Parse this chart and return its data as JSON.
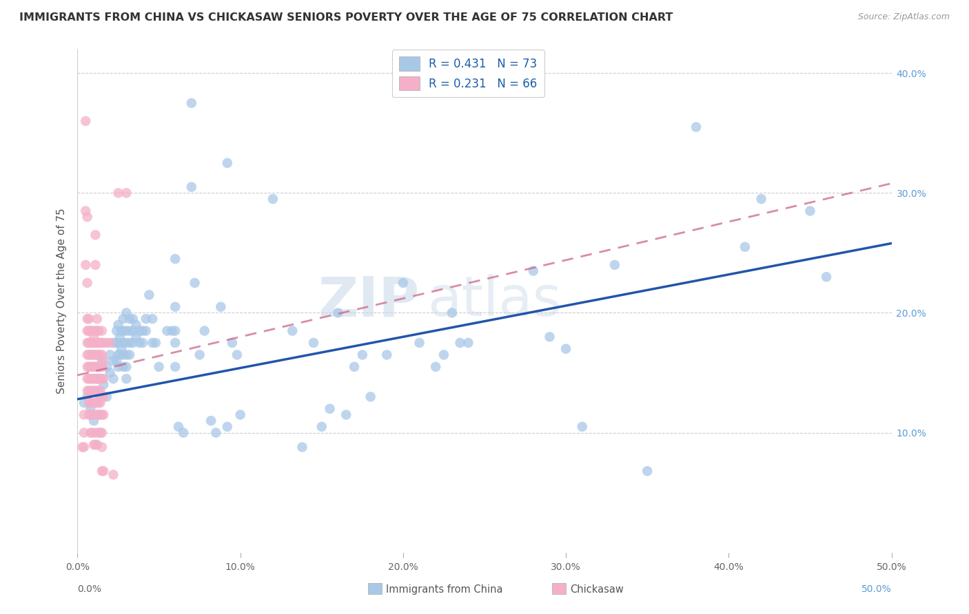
{
  "title": "IMMIGRANTS FROM CHINA VS CHICKASAW SENIORS POVERTY OVER THE AGE OF 75 CORRELATION CHART",
  "source": "Source: ZipAtlas.com",
  "ylabel": "Seniors Poverty Over the Age of 75",
  "xlim": [
    0,
    0.5
  ],
  "ylim": [
    0,
    0.42
  ],
  "xticklabels": [
    "0.0%",
    "10.0%",
    "20.0%",
    "30.0%",
    "40.0%",
    "50.0%"
  ],
  "yticklabels_right": [
    "10.0%",
    "20.0%",
    "30.0%",
    "40.0%"
  ],
  "blue_color": "#a8c8e8",
  "pink_color": "#f4b0c8",
  "blue_line_color": "#2255aa",
  "pink_line_color": "#cc6688",
  "watermark_zip": "ZIP",
  "watermark_atlas": "atlas",
  "blue_scatter": [
    [
      0.004,
      0.125
    ],
    [
      0.006,
      0.13
    ],
    [
      0.008,
      0.12
    ],
    [
      0.01,
      0.11
    ],
    [
      0.012,
      0.145
    ],
    [
      0.014,
      0.13
    ],
    [
      0.015,
      0.16
    ],
    [
      0.016,
      0.14
    ],
    [
      0.018,
      0.155
    ],
    [
      0.018,
      0.13
    ],
    [
      0.02,
      0.165
    ],
    [
      0.02,
      0.15
    ],
    [
      0.022,
      0.175
    ],
    [
      0.022,
      0.16
    ],
    [
      0.022,
      0.145
    ],
    [
      0.024,
      0.185
    ],
    [
      0.024,
      0.175
    ],
    [
      0.024,
      0.16
    ],
    [
      0.025,
      0.19
    ],
    [
      0.025,
      0.175
    ],
    [
      0.025,
      0.165
    ],
    [
      0.025,
      0.155
    ],
    [
      0.026,
      0.18
    ],
    [
      0.026,
      0.165
    ],
    [
      0.027,
      0.185
    ],
    [
      0.027,
      0.17
    ],
    [
      0.028,
      0.195
    ],
    [
      0.028,
      0.185
    ],
    [
      0.028,
      0.175
    ],
    [
      0.028,
      0.165
    ],
    [
      0.028,
      0.155
    ],
    [
      0.03,
      0.2
    ],
    [
      0.03,
      0.185
    ],
    [
      0.03,
      0.175
    ],
    [
      0.03,
      0.165
    ],
    [
      0.03,
      0.155
    ],
    [
      0.03,
      0.145
    ],
    [
      0.032,
      0.195
    ],
    [
      0.032,
      0.185
    ],
    [
      0.032,
      0.175
    ],
    [
      0.032,
      0.165
    ],
    [
      0.034,
      0.195
    ],
    [
      0.034,
      0.185
    ],
    [
      0.034,
      0.175
    ],
    [
      0.036,
      0.19
    ],
    [
      0.036,
      0.18
    ],
    [
      0.038,
      0.185
    ],
    [
      0.038,
      0.175
    ],
    [
      0.04,
      0.185
    ],
    [
      0.04,
      0.175
    ],
    [
      0.042,
      0.195
    ],
    [
      0.042,
      0.185
    ],
    [
      0.044,
      0.215
    ],
    [
      0.046,
      0.195
    ],
    [
      0.046,
      0.175
    ],
    [
      0.048,
      0.175
    ],
    [
      0.05,
      0.155
    ],
    [
      0.055,
      0.185
    ],
    [
      0.058,
      0.185
    ],
    [
      0.06,
      0.245
    ],
    [
      0.06,
      0.205
    ],
    [
      0.06,
      0.185
    ],
    [
      0.06,
      0.175
    ],
    [
      0.06,
      0.155
    ],
    [
      0.062,
      0.105
    ],
    [
      0.065,
      0.1
    ],
    [
      0.07,
      0.375
    ],
    [
      0.07,
      0.305
    ],
    [
      0.072,
      0.225
    ],
    [
      0.075,
      0.165
    ],
    [
      0.078,
      0.185
    ],
    [
      0.082,
      0.11
    ],
    [
      0.085,
      0.1
    ],
    [
      0.088,
      0.205
    ],
    [
      0.092,
      0.325
    ],
    [
      0.092,
      0.105
    ],
    [
      0.095,
      0.175
    ],
    [
      0.098,
      0.165
    ],
    [
      0.1,
      0.115
    ],
    [
      0.12,
      0.295
    ],
    [
      0.132,
      0.185
    ],
    [
      0.138,
      0.088
    ],
    [
      0.145,
      0.175
    ],
    [
      0.15,
      0.105
    ],
    [
      0.155,
      0.12
    ],
    [
      0.16,
      0.2
    ],
    [
      0.165,
      0.115
    ],
    [
      0.17,
      0.155
    ],
    [
      0.175,
      0.165
    ],
    [
      0.18,
      0.13
    ],
    [
      0.19,
      0.165
    ],
    [
      0.2,
      0.225
    ],
    [
      0.21,
      0.175
    ],
    [
      0.215,
      0.385
    ],
    [
      0.22,
      0.155
    ],
    [
      0.225,
      0.165
    ],
    [
      0.23,
      0.2
    ],
    [
      0.235,
      0.175
    ],
    [
      0.24,
      0.175
    ],
    [
      0.28,
      0.235
    ],
    [
      0.29,
      0.18
    ],
    [
      0.3,
      0.17
    ],
    [
      0.31,
      0.105
    ],
    [
      0.33,
      0.24
    ],
    [
      0.35,
      0.068
    ],
    [
      0.38,
      0.355
    ],
    [
      0.41,
      0.255
    ],
    [
      0.42,
      0.295
    ],
    [
      0.45,
      0.285
    ],
    [
      0.46,
      0.23
    ]
  ],
  "pink_scatter": [
    [
      0.003,
      0.088
    ],
    [
      0.004,
      0.115
    ],
    [
      0.004,
      0.1
    ],
    [
      0.004,
      0.088
    ],
    [
      0.005,
      0.36
    ],
    [
      0.005,
      0.285
    ],
    [
      0.005,
      0.24
    ],
    [
      0.006,
      0.28
    ],
    [
      0.006,
      0.225
    ],
    [
      0.006,
      0.195
    ],
    [
      0.006,
      0.185
    ],
    [
      0.006,
      0.175
    ],
    [
      0.006,
      0.165
    ],
    [
      0.006,
      0.155
    ],
    [
      0.006,
      0.145
    ],
    [
      0.006,
      0.135
    ],
    [
      0.007,
      0.195
    ],
    [
      0.007,
      0.185
    ],
    [
      0.007,
      0.175
    ],
    [
      0.007,
      0.165
    ],
    [
      0.007,
      0.155
    ],
    [
      0.007,
      0.145
    ],
    [
      0.007,
      0.135
    ],
    [
      0.007,
      0.125
    ],
    [
      0.007,
      0.115
    ],
    [
      0.008,
      0.185
    ],
    [
      0.008,
      0.175
    ],
    [
      0.008,
      0.165
    ],
    [
      0.008,
      0.155
    ],
    [
      0.008,
      0.145
    ],
    [
      0.008,
      0.135
    ],
    [
      0.008,
      0.125
    ],
    [
      0.008,
      0.115
    ],
    [
      0.008,
      0.1
    ],
    [
      0.009,
      0.185
    ],
    [
      0.009,
      0.175
    ],
    [
      0.009,
      0.165
    ],
    [
      0.009,
      0.155
    ],
    [
      0.009,
      0.145
    ],
    [
      0.009,
      0.135
    ],
    [
      0.009,
      0.125
    ],
    [
      0.009,
      0.115
    ],
    [
      0.009,
      0.1
    ],
    [
      0.01,
      0.18
    ],
    [
      0.01,
      0.175
    ],
    [
      0.01,
      0.165
    ],
    [
      0.01,
      0.155
    ],
    [
      0.01,
      0.145
    ],
    [
      0.01,
      0.135
    ],
    [
      0.01,
      0.125
    ],
    [
      0.01,
      0.115
    ],
    [
      0.01,
      0.09
    ],
    [
      0.011,
      0.265
    ],
    [
      0.011,
      0.24
    ],
    [
      0.011,
      0.185
    ],
    [
      0.011,
      0.175
    ],
    [
      0.011,
      0.165
    ],
    [
      0.011,
      0.155
    ],
    [
      0.011,
      0.145
    ],
    [
      0.011,
      0.135
    ],
    [
      0.011,
      0.125
    ],
    [
      0.011,
      0.1
    ],
    [
      0.011,
      0.09
    ],
    [
      0.012,
      0.195
    ],
    [
      0.012,
      0.185
    ],
    [
      0.012,
      0.175
    ],
    [
      0.012,
      0.165
    ],
    [
      0.012,
      0.155
    ],
    [
      0.012,
      0.145
    ],
    [
      0.012,
      0.135
    ],
    [
      0.012,
      0.125
    ],
    [
      0.012,
      0.115
    ],
    [
      0.012,
      0.09
    ],
    [
      0.013,
      0.185
    ],
    [
      0.013,
      0.175
    ],
    [
      0.013,
      0.165
    ],
    [
      0.013,
      0.155
    ],
    [
      0.013,
      0.145
    ],
    [
      0.013,
      0.135
    ],
    [
      0.013,
      0.125
    ],
    [
      0.013,
      0.115
    ],
    [
      0.013,
      0.1
    ],
    [
      0.014,
      0.175
    ],
    [
      0.014,
      0.165
    ],
    [
      0.014,
      0.155
    ],
    [
      0.014,
      0.145
    ],
    [
      0.014,
      0.135
    ],
    [
      0.014,
      0.125
    ],
    [
      0.014,
      0.115
    ],
    [
      0.014,
      0.1
    ],
    [
      0.015,
      0.185
    ],
    [
      0.015,
      0.175
    ],
    [
      0.015,
      0.165
    ],
    [
      0.015,
      0.155
    ],
    [
      0.015,
      0.145
    ],
    [
      0.015,
      0.13
    ],
    [
      0.015,
      0.115
    ],
    [
      0.015,
      0.1
    ],
    [
      0.015,
      0.088
    ],
    [
      0.015,
      0.068
    ],
    [
      0.016,
      0.175
    ],
    [
      0.016,
      0.16
    ],
    [
      0.016,
      0.145
    ],
    [
      0.016,
      0.13
    ],
    [
      0.016,
      0.115
    ],
    [
      0.016,
      0.068
    ],
    [
      0.018,
      0.175
    ],
    [
      0.02,
      0.175
    ],
    [
      0.022,
      0.065
    ],
    [
      0.025,
      0.3
    ],
    [
      0.03,
      0.3
    ]
  ],
  "blue_regression": {
    "x_start": 0.0,
    "y_start": 0.128,
    "x_end": 0.5,
    "y_end": 0.258
  },
  "pink_regression": {
    "x_start": 0.0,
    "y_start": 0.148,
    "x_end": 0.5,
    "y_end": 0.308
  }
}
